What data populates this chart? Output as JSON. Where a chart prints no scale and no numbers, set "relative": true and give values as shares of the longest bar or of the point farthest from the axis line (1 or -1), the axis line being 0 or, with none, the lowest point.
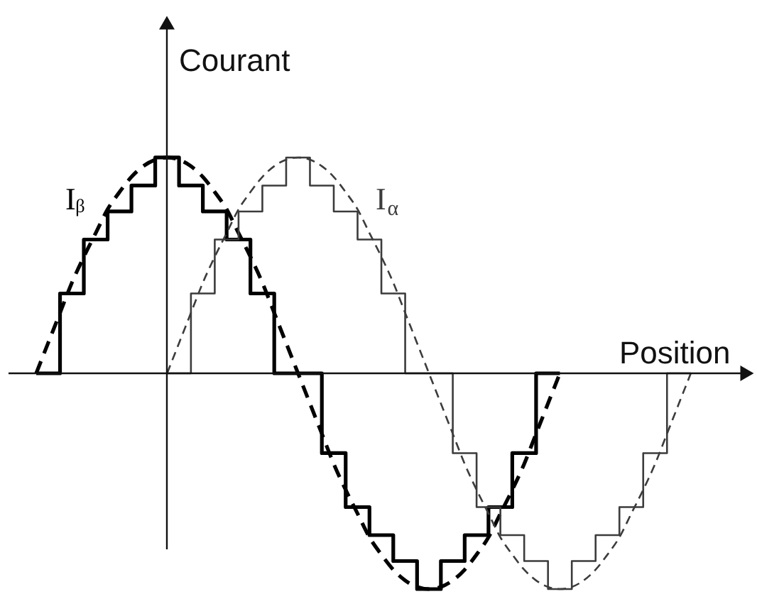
{
  "chart_data": {
    "type": "line",
    "relative": true,
    "xlabel": "Position",
    "ylabel": "Courant",
    "categories": [
      null,
      null,
      null,
      null,
      null,
      null,
      null,
      null,
      null,
      null,
      null,
      null,
      null,
      null,
      null,
      null,
      null,
      null,
      null,
      null,
      null,
      null,
      null,
      null,
      null,
      null,
      null,
      null,
      null,
      null,
      null,
      null,
      null,
      null,
      null,
      null,
      null,
      null,
      null,
      null,
      null,
      null,
      null,
      null,
      null,
      null,
      null,
      null,
      null,
      null,
      null,
      null,
      null,
      null,
      null,
      null
    ],
    "series": [
      {
        "name": "Iᵦ",
        "color": "#000000",
        "line_style": "dashed",
        "values": [
          0,
          0.14,
          0.28,
          0.42,
          0.54,
          0.65,
          0.76,
          0.84,
          0.91,
          0.96,
          0.99,
          1,
          0.99,
          0.96,
          0.91,
          0.84,
          0.76,
          0.65,
          0.54,
          0.42,
          0.28,
          0.14,
          0,
          -0.14,
          -0.28,
          -0.42,
          -0.54,
          -0.65,
          -0.76,
          -0.84,
          -0.91,
          -0.96,
          -0.99,
          -1,
          -0.99,
          -0.96,
          -0.91,
          -0.84,
          -0.76,
          -0.65,
          -0.54,
          -0.42,
          -0.28,
          -0.14,
          0,
          null,
          null,
          null,
          null,
          null,
          null,
          null,
          null,
          null,
          null,
          null
        ]
      },
      {
        "color": "#000000",
        "type": "step",
        "line_style": "solid",
        "values": [
          0,
          0,
          0.37,
          0.37,
          0.62,
          0.62,
          0.75,
          0.75,
          0.87,
          0.87,
          1,
          1,
          0.87,
          0.87,
          0.75,
          0.75,
          0.62,
          0.62,
          0.37,
          0.37,
          0,
          0,
          0,
          0,
          -0.37,
          -0.37,
          -0.62,
          -0.62,
          -0.75,
          -0.75,
          -0.87,
          -0.87,
          -1,
          -1,
          -0.87,
          -0.87,
          -0.75,
          -0.75,
          -0.62,
          -0.62,
          -0.37,
          -0.37,
          0,
          0,
          0,
          null,
          null,
          null,
          null,
          null,
          null,
          null,
          null,
          null,
          null,
          null
        ]
      },
      {
        "name": "I$_{α}$",
        "color": "#3c3c3c",
        "line_style": "dashed",
        "values": [
          null,
          null,
          null,
          null,
          null,
          null,
          null,
          null,
          null,
          null,
          null,
          0,
          0.14,
          0.28,
          0.42,
          0.54,
          0.65,
          0.76,
          0.84,
          0.91,
          0.96,
          0.99,
          1,
          0.99,
          0.96,
          0.91,
          0.84,
          0.76,
          0.65,
          0.54,
          0.42,
          0.28,
          0.14,
          0,
          -0.14,
          -0.28,
          -0.42,
          -0.54,
          -0.65,
          -0.76,
          -0.84,
          -0.91,
          -0.96,
          -0.99,
          -1,
          -0.99,
          -0.96,
          -0.91,
          -0.84,
          -0.76,
          -0.65,
          -0.54,
          -0.42,
          -0.28,
          -0.14,
          0
        ]
      },
      {
        "color": "#3c3c3c",
        "type": "step",
        "line_style": "solid",
        "values": [
          null,
          null,
          null,
          null,
          null,
          null,
          null,
          null,
          null,
          null,
          null,
          0,
          0,
          0.37,
          0.37,
          0.62,
          0.62,
          0.75,
          0.75,
          0.87,
          0.87,
          1,
          1,
          0.87,
          0.87,
          0.75,
          0.75,
          0.62,
          0.62,
          0.37,
          0.37,
          0,
          0,
          0,
          0,
          -0.37,
          -0.37,
          -0.62,
          -0.62,
          -0.75,
          -0.75,
          -0.87,
          -0.87,
          -1,
          -1,
          -0.87,
          -0.87,
          -0.75,
          -0.75,
          -0.62,
          -0.62,
          -0.37,
          -0.37,
          0,
          0,
          0
        ]
      }
    ]
  }
}
